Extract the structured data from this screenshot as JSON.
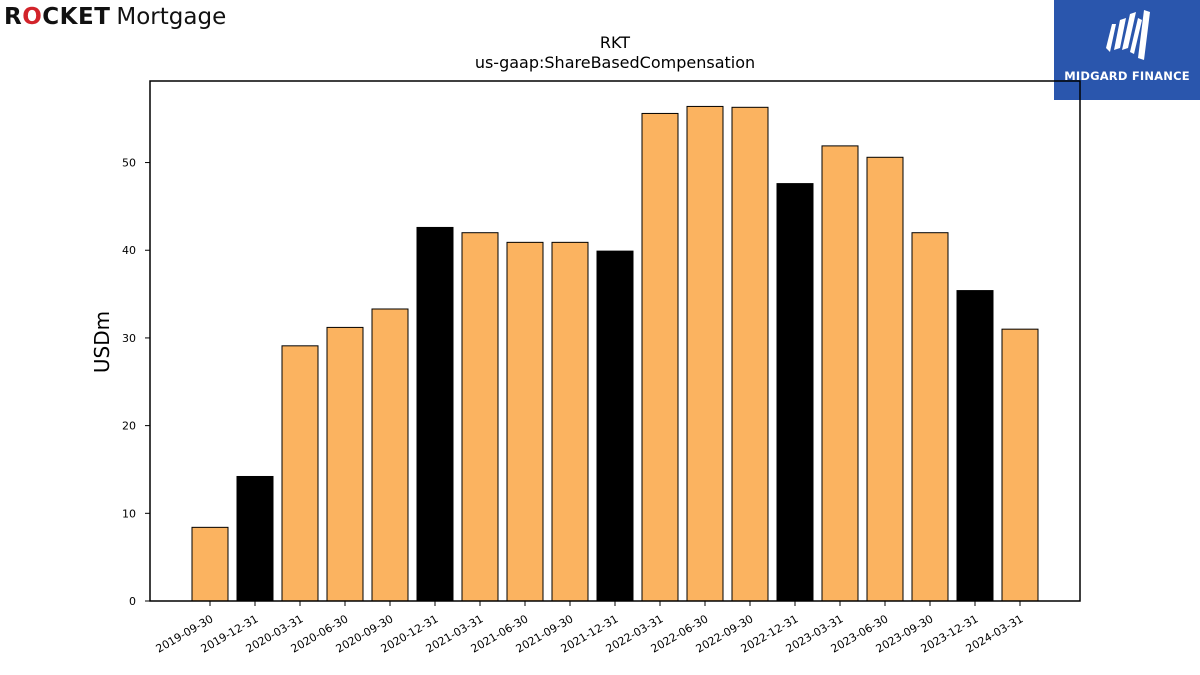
{
  "logos": {
    "left": {
      "bold_prefix": "R",
      "ring_letter": "O",
      "bold_suffix": "CKET",
      "light_text": "Mortgage",
      "ring_color": "#d2232a"
    },
    "right": {
      "text": "MIDGARD FINANCE",
      "background": "#2a56ad"
    }
  },
  "chart_data": {
    "type": "bar",
    "title": "RKT",
    "subtitle": "us-gaap:ShareBasedCompensation",
    "xlabel": "",
    "ylabel": "USDm",
    "ylim": [
      0,
      59.3
    ],
    "yticks": [
      0,
      10,
      20,
      30,
      40,
      50
    ],
    "grid": false,
    "categories": [
      "2019-09-30",
      "2019-12-31",
      "2020-03-31",
      "2020-06-30",
      "2020-09-30",
      "2020-12-31",
      "2021-03-31",
      "2021-06-30",
      "2021-09-30",
      "2021-12-31",
      "2022-03-31",
      "2022-06-30",
      "2022-09-30",
      "2022-12-31",
      "2023-03-31",
      "2023-06-30",
      "2023-09-30",
      "2023-12-31",
      "2024-03-31"
    ],
    "values": [
      8.4,
      14.2,
      29.1,
      31.2,
      33.3,
      42.6,
      42.0,
      40.9,
      40.9,
      39.9,
      55.6,
      56.4,
      56.3,
      47.6,
      51.9,
      50.6,
      42.0,
      35.4,
      31.0
    ],
    "bar_colors": [
      "#fbb360",
      "#000000",
      "#fbb360",
      "#fbb360",
      "#fbb360",
      "#000000",
      "#fbb360",
      "#fbb360",
      "#fbb360",
      "#000000",
      "#fbb360",
      "#fbb360",
      "#fbb360",
      "#000000",
      "#fbb360",
      "#fbb360",
      "#fbb360",
      "#000000",
      "#fbb360"
    ],
    "colors": {
      "quarter": "#fbb360",
      "year_end": "#000000"
    }
  }
}
